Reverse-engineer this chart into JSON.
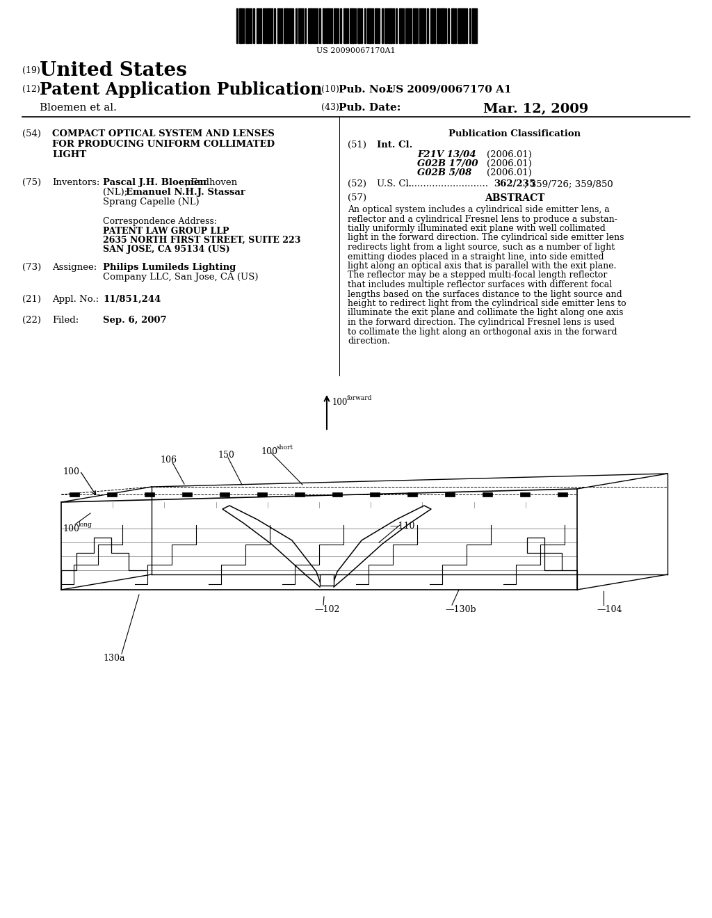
{
  "bg_color": "#ffffff",
  "barcode_text": "US 20090067170A1",
  "text_color": "#000000",
  "header": {
    "num19": "(19)",
    "country": "United States",
    "num12": "(12)",
    "pub_type": "Patent Application Publication",
    "num10": "(10)",
    "pub_no_label": "Pub. No.:",
    "pub_no_value": "US 2009/0067170 A1",
    "author": "Bloemen et al.",
    "num43": "(43)",
    "pub_date_label": "Pub. Date:",
    "pub_date_value": "Mar. 12, 2009"
  },
  "left": {
    "num54": "(54)",
    "title": "COMPACT OPTICAL SYSTEM AND LENSES\nFOR PRODUCING UNIFORM COLLIMATED\nLIGHT",
    "num75": "(75)",
    "inventors_label": "Inventors:",
    "inventors_value": "Pascal J.H. Bloemen, Endhoven\n(NL); Emanuel N.H.J. Stassar,\nSprang Capelle (NL)",
    "corr_header": "Correspondence Address:",
    "corr_lines": [
      "PATENT LAW GROUP LLP",
      "2635 NORTH FIRST STREET, SUITE 223",
      "SAN JOSE, CA 95134 (US)"
    ],
    "num73": "(73)",
    "assignee_label": "Assignee:",
    "assignee_bold": "Philips Lumileds Lighting",
    "assignee_normal": "Company LLC, San Jose, CA (US)",
    "num21": "(21)",
    "appl_label": "Appl. No.:",
    "appl_value": "11/851,244",
    "num22": "(22)",
    "filed_label": "Filed:",
    "filed_value": "Sep. 6, 2007"
  },
  "right": {
    "pub_class_title": "Publication Classification",
    "num51": "(51)",
    "intcl_label": "Int. Cl.",
    "classes": [
      [
        "F21V 13/04",
        "(2006.01)"
      ],
      [
        "G02B 17/00",
        "(2006.01)"
      ],
      [
        "G02B 5/08",
        "(2006.01)"
      ]
    ],
    "num52": "(52)",
    "uscl_label": "U.S. Cl.",
    "uscl_dots": "............................",
    "uscl_bold": "362/235",
    "uscl_normal": "; 359/726; 359/850",
    "num57": "(57)",
    "abstract_title": "ABSTRACT",
    "abstract_text": "An optical system includes a cylindrical side emitter lens, a\nreflector and a cylindrical Fresnel lens to produce a substan-\ntially uniformly illuminated exit plane with well collimated\nlight in the forward direction. The cylindrical side emitter lens\nredirects light from a light source, such as a number of light\nemitting diodes placed in a straight line, into side emitted\nlight along an optical axis that is parallel with the exit plane.\nThe reflector may be a stepped multi-focal length reflector\nthat includes multiple reflector surfaces with different focal\nlengths based on the surfaces distance to the light source and\nheight to redirect light from the cylindrical side emitter lens to\nilluminate the exit plane and collimate the light along one axis\nin the forward direction. The cylindrical Fresnel lens is used\nto collimate the light along an orthogonal axis in the forward\ndirection."
  }
}
